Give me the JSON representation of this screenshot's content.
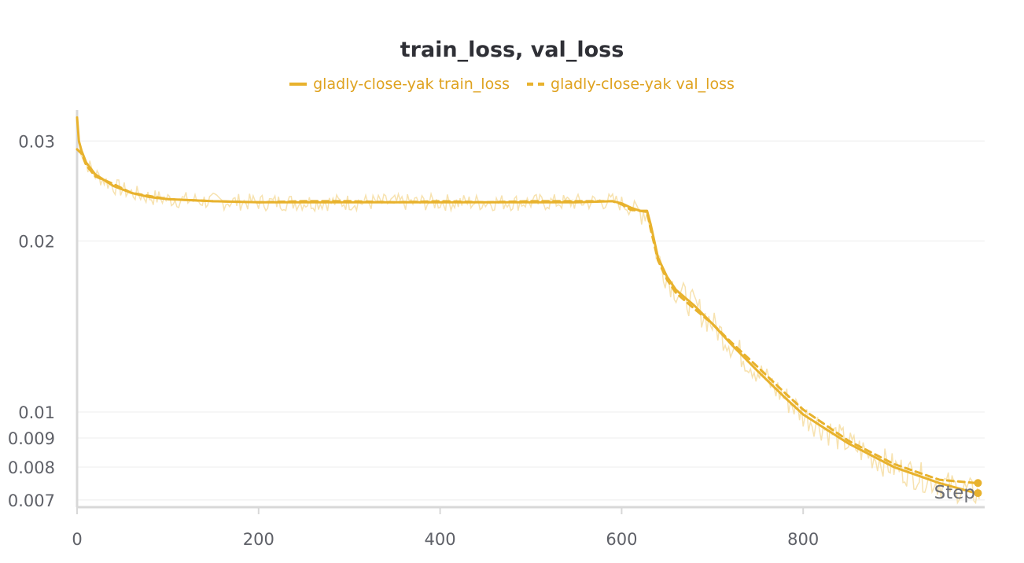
{
  "chart_data": {
    "type": "line",
    "title": "train_loss, val_loss",
    "xlabel": "Step",
    "ylabel": "",
    "y_scale": "log",
    "xlim": [
      0,
      1000
    ],
    "ylim": [
      0.0068,
      0.034
    ],
    "x_ticks": [
      "0",
      "200",
      "400",
      "600",
      "800"
    ],
    "y_ticks": [
      "0.03",
      "0.02",
      "0.01",
      "0.009",
      "0.008",
      "0.007"
    ],
    "grid": true,
    "legend_position": "top-center",
    "colors": {
      "line": "#e8b22d",
      "noise": "#f6dfa6",
      "text": "#dfa21f"
    },
    "series": [
      {
        "name": "gladly-close-yak train_loss",
        "style": "solid",
        "x": [
          0,
          2,
          5,
          10,
          20,
          40,
          60,
          80,
          100,
          150,
          200,
          250,
          300,
          350,
          400,
          450,
          500,
          550,
          590,
          600,
          610,
          620,
          628,
          632,
          640,
          650,
          660,
          680,
          700,
          720,
          750,
          780,
          800,
          850,
          900,
          950,
          990
        ],
        "y": [
          0.033,
          0.03,
          0.0288,
          0.0275,
          0.0262,
          0.025,
          0.0243,
          0.0239,
          0.0237,
          0.0235,
          0.0234,
          0.0234,
          0.0234,
          0.0234,
          0.0234,
          0.0234,
          0.0234,
          0.0234,
          0.0235,
          0.0233,
          0.0229,
          0.0226,
          0.0226,
          0.0214,
          0.0187,
          0.0173,
          0.0164,
          0.0154,
          0.0143,
          0.0132,
          0.0118,
          0.0106,
          0.0099,
          0.0088,
          0.008,
          0.0075,
          0.0072
        ]
      },
      {
        "name": "gladly-close-yak val_loss",
        "style": "dashed",
        "x": [
          0,
          5,
          10,
          20,
          40,
          60,
          80,
          100,
          150,
          200,
          250,
          300,
          350,
          400,
          450,
          500,
          550,
          590,
          600,
          610,
          620,
          628,
          632,
          640,
          650,
          660,
          680,
          700,
          720,
          750,
          780,
          800,
          850,
          900,
          950,
          990
        ],
        "y": [
          0.029,
          0.0285,
          0.0272,
          0.026,
          0.0252,
          0.0243,
          0.024,
          0.0237,
          0.0235,
          0.0234,
          0.0235,
          0.0235,
          0.0234,
          0.0235,
          0.0234,
          0.0235,
          0.0235,
          0.0235,
          0.0232,
          0.0227,
          0.0226,
          0.0225,
          0.021,
          0.0185,
          0.0171,
          0.0162,
          0.0152,
          0.0143,
          0.0133,
          0.012,
          0.0108,
          0.0101,
          0.0089,
          0.0081,
          0.0076,
          0.0075
        ]
      }
    ]
  }
}
